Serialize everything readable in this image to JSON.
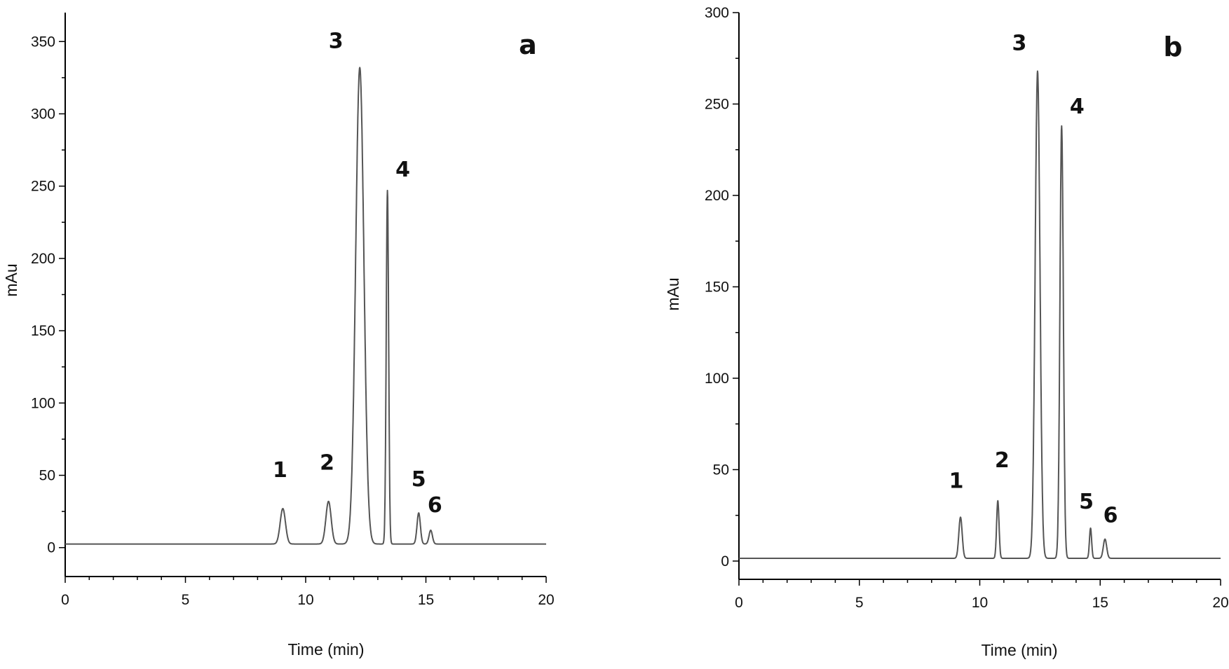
{
  "chart_data": [
    {
      "type": "line",
      "panel_label": "a",
      "xlabel": "Time (min)",
      "ylabel": "mAu",
      "xlim": [
        0,
        20
      ],
      "ylim": [
        -20,
        370
      ],
      "xticks": [
        0,
        5,
        10,
        15,
        20
      ],
      "yticks": [
        0,
        50,
        100,
        150,
        200,
        250,
        300,
        350
      ],
      "x_minor_step": 1,
      "y_minor_step": 25,
      "baseline": 2.5,
      "grid": false,
      "series": [
        {
          "peaks": [
            {
              "label": "1",
              "x": 9.05,
              "y": 27
            },
            {
              "label": "2",
              "x": 10.95,
              "y": 32
            },
            {
              "label": "3",
              "x": 12.25,
              "y": 332
            },
            {
              "label": "4",
              "x": 13.4,
              "y": 247
            },
            {
              "label": "5",
              "x": 14.7,
              "y": 24
            },
            {
              "label": "6",
              "x": 15.2,
              "y": 12
            }
          ]
        }
      ]
    },
    {
      "type": "line",
      "panel_label": "b",
      "xlabel": "Time (min)",
      "ylabel": "mAu",
      "xlim": [
        0,
        20
      ],
      "ylim": [
        -10,
        300
      ],
      "xticks": [
        0,
        5,
        10,
        15,
        20
      ],
      "yticks": [
        0,
        50,
        100,
        150,
        200,
        250,
        300
      ],
      "x_minor_step": 1,
      "y_minor_step": 25,
      "baseline": 1.5,
      "grid": false,
      "series": [
        {
          "peaks": [
            {
              "label": "1",
              "x": 9.2,
              "y": 24
            },
            {
              "label": "2",
              "x": 10.75,
              "y": 33
            },
            {
              "label": "3",
              "x": 12.4,
              "y": 268
            },
            {
              "label": "4",
              "x": 13.4,
              "y": 238
            },
            {
              "label": "5",
              "x": 14.6,
              "y": 18
            },
            {
              "label": "6",
              "x": 15.2,
              "y": 12
            }
          ]
        }
      ]
    }
  ]
}
